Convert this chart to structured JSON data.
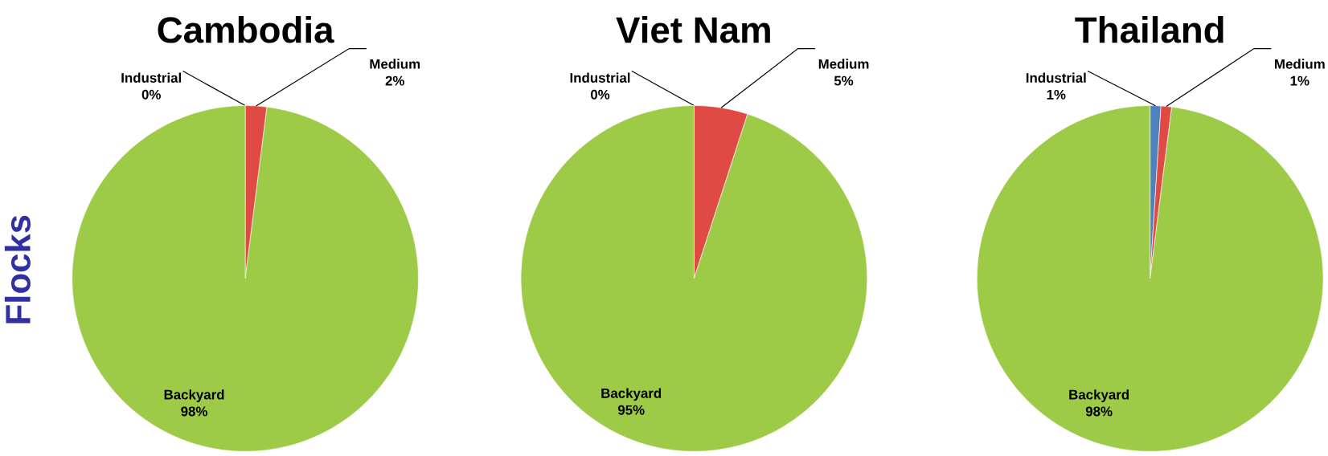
{
  "chart_data": [
    {
      "type": "pie",
      "title": "Cambodia",
      "ylabel": "Flocks",
      "categories": [
        "Industrial",
        "Medium",
        "Backyard"
      ],
      "values": [
        0,
        2,
        98
      ],
      "value_labels": [
        "0%",
        "2%",
        "98%"
      ],
      "colors": [
        "#4f81bd",
        "#e04a45",
        "#9dcb48"
      ]
    },
    {
      "type": "pie",
      "title": "Viet Nam",
      "categories": [
        "Industrial",
        "Medium",
        "Backyard"
      ],
      "values": [
        0,
        5,
        95
      ],
      "value_labels": [
        "0%",
        "5%",
        "95%"
      ],
      "colors": [
        "#4f81bd",
        "#e04a45",
        "#9dcb48"
      ]
    },
    {
      "type": "pie",
      "title": "Thailand",
      "categories": [
        "Industrial",
        "Medium",
        "Backyard"
      ],
      "values": [
        1,
        1,
        98
      ],
      "value_labels": [
        "1%",
        "1%",
        "98%"
      ],
      "colors": [
        "#4f81bd",
        "#e04a45",
        "#9dcb48"
      ]
    }
  ]
}
